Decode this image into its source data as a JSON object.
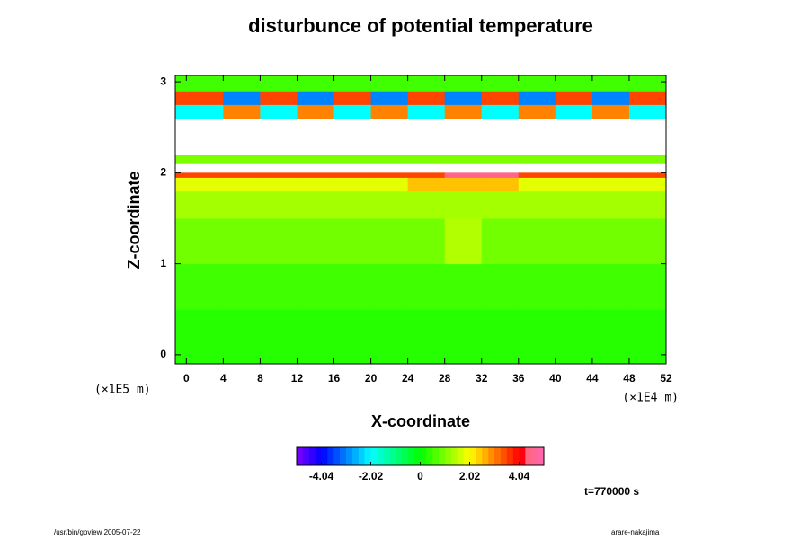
{
  "chart_data": {
    "type": "heatmap",
    "title": "disturbunce of potential temperature",
    "x_label": "X-coordinate",
    "y_label": "Z-coordinate",
    "x_unit": "(×1E4 m)",
    "y_unit": "(×1E5 m)",
    "annotation": "t=770000 s",
    "footer_left": "/usr/bin/gpview 2005-07-22",
    "footer_right": "arare-nakajima",
    "xlim": [
      -1.2,
      52
    ],
    "ylim": [
      -0.1,
      3.07
    ],
    "xticks": [
      0,
      4,
      8,
      12,
      16,
      20,
      24,
      28,
      32,
      36,
      40,
      44,
      48,
      52
    ],
    "yticks": [
      0,
      1,
      2,
      3
    ],
    "x_edges": [
      -1.2,
      4,
      8,
      12,
      16,
      20,
      24,
      28,
      32,
      36,
      40,
      44,
      48,
      52
    ],
    "y_edges": [
      -0.1,
      0.5,
      1.0,
      1.5,
      1.8,
      1.95,
      2.0,
      2.1,
      2.2,
      2.4,
      2.6,
      2.75,
      2.9,
      3.07
    ],
    "values": [
      [
        0.3,
        0.3,
        0.3,
        0.3,
        0.3,
        0.3,
        0.3,
        0.3,
        0.3,
        0.3,
        0.3,
        0.3,
        0.3
      ],
      [
        0.5,
        0.5,
        0.5,
        0.5,
        0.5,
        0.5,
        0.5,
        0.5,
        0.5,
        0.5,
        0.5,
        0.5,
        0.5
      ],
      [
        0.9,
        0.9,
        0.9,
        0.9,
        0.9,
        0.9,
        0.9,
        1.4,
        0.9,
        0.9,
        0.9,
        0.9,
        0.9
      ],
      [
        1.3,
        1.3,
        1.3,
        1.3,
        1.3,
        1.3,
        1.3,
        1.3,
        1.3,
        1.3,
        1.3,
        1.3,
        1.3
      ],
      [
        1.8,
        1.8,
        1.8,
        1.8,
        1.8,
        1.8,
        2.5,
        2.5,
        2.5,
        1.8,
        1.8,
        1.8,
        1.8
      ],
      [
        3.5,
        3.5,
        3.5,
        3.5,
        3.5,
        3.5,
        3.5,
        4.5,
        4.5,
        3.5,
        3.5,
        3.5,
        3.5
      ],
      [
        null,
        null,
        null,
        null,
        null,
        null,
        null,
        null,
        null,
        null,
        null,
        null,
        null
      ],
      [
        1.0,
        1.0,
        1.0,
        1.0,
        1.0,
        1.0,
        1.0,
        1.0,
        1.0,
        1.0,
        1.0,
        1.0,
        1.0
      ],
      [
        null,
        null,
        null,
        null,
        null,
        null,
        null,
        null,
        null,
        null,
        null,
        null,
        null
      ],
      [
        null,
        null,
        null,
        null,
        null,
        null,
        null,
        null,
        null,
        null,
        null,
        null,
        null
      ],
      [
        -2,
        3,
        -2,
        3,
        -2,
        3,
        -2,
        3,
        -2,
        3,
        -2,
        3,
        -2
      ],
      [
        3.5,
        -3,
        3.5,
        -3,
        3.5,
        -3,
        3.5,
        -3,
        3.5,
        -3,
        3.5,
        -3,
        3.5
      ],
      [
        0.5,
        0.5,
        0.5,
        0.5,
        0.5,
        0.5,
        0.5,
        0.5,
        0.5,
        0.5,
        0.5,
        0.5,
        0.5
      ]
    ],
    "clim": [
      -5.05,
      5.05
    ],
    "cticks": [
      -4.04,
      -2.02,
      0,
      2.02,
      4.04
    ]
  }
}
